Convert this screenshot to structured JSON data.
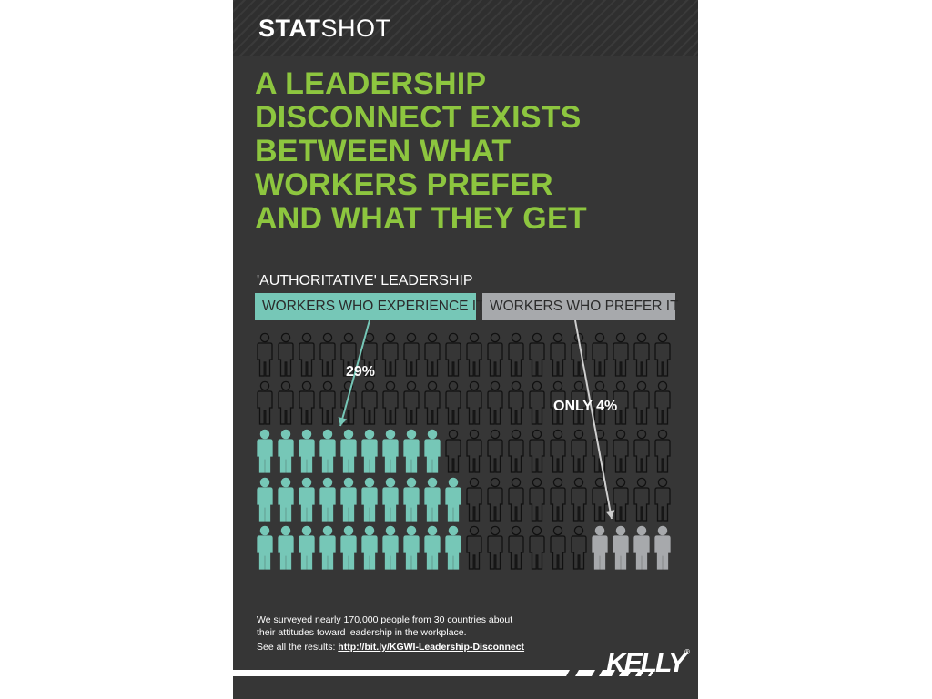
{
  "brand": {
    "part1": "STAT",
    "part2": "SHOT"
  },
  "headline": [
    "A LEADERSHIP",
    "DISCONNECT EXISTS",
    "BETWEEN WHAT",
    "WORKERS PREFER",
    "AND WHAT THEY GET"
  ],
  "colors": {
    "background": "#363636",
    "headline": "#8dc63f",
    "experience": "#76c7b7",
    "prefer": "#a7a9ac",
    "outline": "#111111"
  },
  "chart_data": {
    "type": "pictogram",
    "title": "'AUTHORITATIVE' LEADERSHIP",
    "grid": {
      "rows": 5,
      "columns": 20,
      "total_icons": 100
    },
    "series": [
      {
        "name": "WORKERS WHO EXPERIENCE IT",
        "value": 29,
        "unit": "%",
        "label": "29%"
      },
      {
        "name": "WORKERS WHO PREFER IT",
        "value": 4,
        "unit": "%",
        "label": "ONLY 4%"
      }
    ]
  },
  "footer": {
    "note": "We surveyed nearly 170,000 people from 30 countries about their attitudes toward leadership in the workplace.",
    "results_prefix": "See all the results: ",
    "results_link": "http://bit.ly/KGWI-Leadership-Disconnect",
    "logo": "KELLY",
    "logo_mark": "®"
  }
}
